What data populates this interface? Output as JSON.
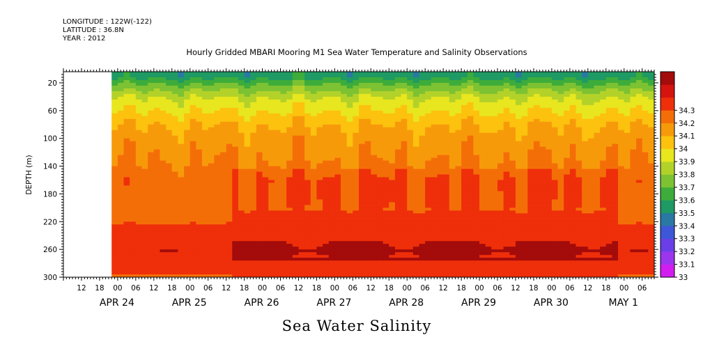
{
  "header": {
    "longitude": "LONGITUDE : 122W(-122)",
    "latitude": "LATITUDE : 36.8N",
    "year": "YEAR : 2012",
    "title": "Hourly Gridded MBARI Mooring M1 Sea Water Temperature and Salinity Observations"
  },
  "footer": {
    "variable_title": "Sea Water Salinity"
  },
  "chart_data": {
    "type": "heatmap",
    "title": "Hourly Gridded MBARI Mooring M1 Sea Water Temperature and Salinity Observations",
    "variable": "Sea Water Salinity",
    "xlabel": "",
    "ylabel": "DEPTH (m)",
    "x_hour_start": 6,
    "x_hour_end": 202,
    "data_start_hour": 22,
    "y_range": [
      4,
      300
    ],
    "y_inverted": true,
    "y_ticks": [
      "20",
      "60",
      "100",
      "140",
      "180",
      "220",
      "260",
      "300"
    ],
    "x_ticks": [
      "12",
      "18",
      "00",
      "06",
      "12",
      "18",
      "00",
      "06",
      "12",
      "18",
      "00",
      "06",
      "12",
      "18",
      "00",
      "06",
      "12",
      "18",
      "00",
      "06",
      "12",
      "18",
      "00",
      "06",
      "12",
      "18",
      "00",
      "06",
      "12",
      "18",
      "00",
      "06"
    ],
    "x_day_labels": [
      "APR 24",
      "APR 25",
      "APR 26",
      "APR 27",
      "APR 28",
      "APR 29",
      "APR 30",
      "MAY  1"
    ],
    "colorbar": {
      "levels": [
        "33",
        "33.1",
        "33.2",
        "33.3",
        "33.4",
        "33.5",
        "33.6",
        "33.7",
        "33.8",
        "33.9",
        "34",
        "34.1",
        "34.2",
        "34.3"
      ],
      "colors": [
        "#d21df0",
        "#9b35ee",
        "#6a3fe8",
        "#3e57d8",
        "#2a78a4",
        "#1f9a64",
        "#3dac3b",
        "#7cc232",
        "#b2d22a",
        "#e8e61e",
        "#fcc20e",
        "#f79a0a",
        "#f46e08",
        "#ee2f0a",
        "#d51410",
        "#a40b0b"
      ]
    },
    "depth_profile": [
      {
        "depth": 8,
        "salinity": 33.45
      },
      {
        "depth": 20,
        "salinity": 33.6
      },
      {
        "depth": 40,
        "salinity": 33.8
      },
      {
        "depth": 60,
        "salinity": 33.9
      },
      {
        "depth": 80,
        "salinity": 34.0
      },
      {
        "depth": 100,
        "salinity": 34.05
      },
      {
        "depth": 130,
        "salinity": 34.1
      },
      {
        "depth": 160,
        "salinity": 34.16
      },
      {
        "depth": 200,
        "salinity": 34.15
      },
      {
        "depth": 230,
        "salinity": 34.22
      },
      {
        "depth": 260,
        "salinity": 34.28
      },
      {
        "depth": 300,
        "salinity": 34.18
      }
    ],
    "grid": false
  }
}
